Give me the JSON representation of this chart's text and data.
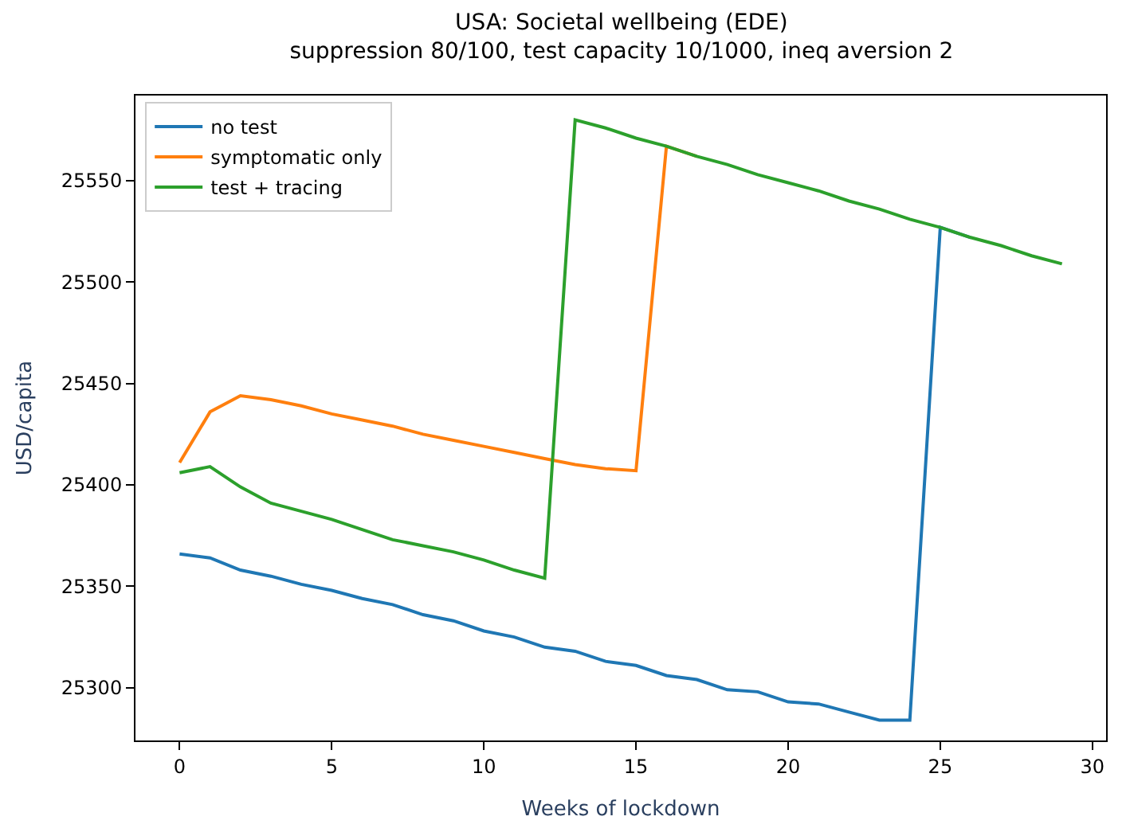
{
  "chart_data": {
    "type": "line",
    "title": "USA: Societal wellbeing (EDE)\nsuppression 80/100, test capacity 10/1000, ineq aversion 2",
    "xlabel": "Weeks of lockdown",
    "ylabel": "USD/capita",
    "x": [
      0,
      1,
      2,
      3,
      4,
      5,
      6,
      7,
      8,
      9,
      10,
      11,
      12,
      13,
      14,
      15,
      16,
      17,
      18,
      19,
      20,
      21,
      22,
      23,
      24,
      25,
      26,
      27,
      28,
      29
    ],
    "series": [
      {
        "name": "no test",
        "color": "#1f77b4",
        "values": [
          25366,
          25364,
          25358,
          25355,
          25351,
          25348,
          25344,
          25341,
          25336,
          25333,
          25328,
          25325,
          25320,
          25318,
          25313,
          25311,
          25306,
          25304,
          25299,
          25298,
          25293,
          25292,
          25288,
          25284,
          25284,
          25527,
          25522,
          null,
          null,
          null
        ]
      },
      {
        "name": "symptomatic only",
        "color": "#ff7f0e",
        "values": [
          25411,
          25436,
          25444,
          25442,
          25439,
          25435,
          25432,
          25429,
          25425,
          25422,
          25419,
          25416,
          25413,
          25410,
          25408,
          25407,
          25567,
          25562,
          null,
          null,
          null,
          null,
          null,
          null,
          null,
          null,
          null,
          null,
          null,
          null
        ]
      },
      {
        "name": "test + tracing",
        "color": "#2ca02c",
        "values": [
          25406,
          25409,
          25399,
          25391,
          25387,
          25383,
          25378,
          25373,
          25370,
          25367,
          25363,
          25358,
          25354,
          25580,
          25576,
          25571,
          25567,
          25562,
          25558,
          25553,
          25549,
          25545,
          25540,
          25536,
          25531,
          25527,
          25522,
          25518,
          25513,
          25509
        ]
      }
    ],
    "xlim": [
      -1.45,
      30.45
    ],
    "ylim": [
      25274,
      25592
    ],
    "xticks": [
      0,
      5,
      10,
      15,
      20,
      25,
      30
    ],
    "yticks": [
      25300,
      25350,
      25400,
      25450,
      25500,
      25550
    ],
    "legend": "top left",
    "grid": false,
    "marker": "none",
    "line_style": "solid"
  }
}
